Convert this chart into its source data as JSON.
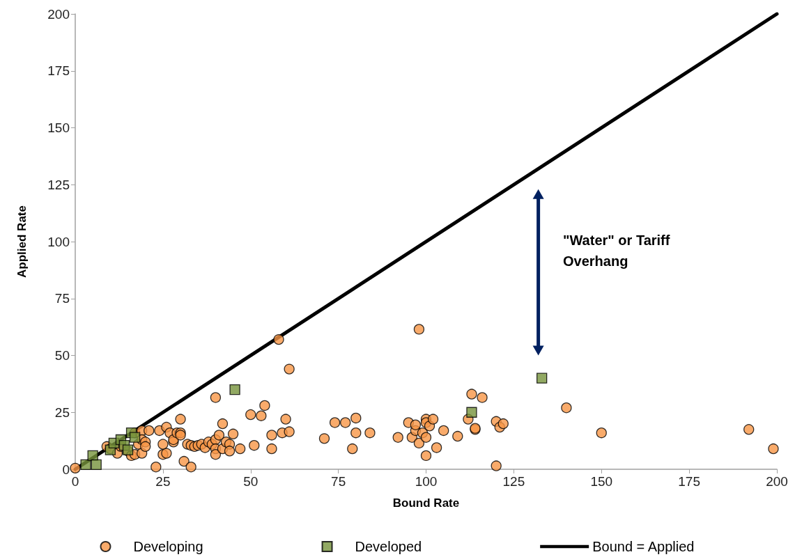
{
  "chart_data": {
    "type": "scatter",
    "xlabel": "Bound Rate",
    "ylabel": "Applied Rate",
    "xlim": [
      0,
      200
    ],
    "xticks": [
      0,
      25,
      50,
      75,
      100,
      125,
      150,
      175,
      200
    ],
    "ylim": [
      0,
      200
    ],
    "yticks": [
      0,
      25,
      50,
      75,
      100,
      125,
      150,
      175,
      200
    ],
    "grid": false,
    "legend": "bottom",
    "annotations": [
      "\"Water\" or Tariff Overhang"
    ],
    "series": [
      {
        "name": "Developing",
        "color": "#f79646",
        "marker": "circle",
        "x": [
          0,
          9,
          10,
          12,
          13,
          15,
          16,
          17,
          17,
          18,
          19,
          19,
          19,
          20,
          20,
          21,
          23,
          24,
          25,
          25,
          26,
          26,
          27,
          28,
          28,
          29,
          30,
          30,
          30,
          31,
          32,
          33,
          33,
          34,
          35,
          36,
          37,
          38,
          39,
          40,
          40,
          40,
          40,
          41,
          42,
          42,
          43,
          44,
          44,
          45,
          47,
          50,
          51,
          53,
          54,
          56,
          56,
          58,
          59,
          60,
          61,
          61,
          71,
          74,
          77,
          79,
          80,
          80,
          84,
          92,
          95,
          96,
          97,
          97,
          98,
          98,
          99,
          100,
          100,
          100,
          100,
          101,
          102,
          103,
          105,
          109,
          112,
          113,
          114,
          114,
          116,
          120,
          120,
          121,
          122,
          140,
          150,
          192,
          199
        ],
        "values": [
          0.5,
          10,
          9,
          7,
          10,
          8,
          6,
          6.5,
          16,
          11,
          7,
          17,
          13,
          12,
          10,
          17,
          1,
          17,
          11,
          6.5,
          7,
          18.5,
          16,
          12,
          13,
          16,
          22,
          16,
          15,
          3.5,
          11,
          10.5,
          1,
          10,
          10.5,
          11,
          9.5,
          12,
          11,
          31.5,
          13,
          9,
          6.5,
          15,
          9,
          20,
          12,
          11,
          8,
          15.5,
          9,
          24,
          10.5,
          23.5,
          28,
          15,
          9,
          57,
          16,
          22,
          44,
          16.5,
          13.5,
          20.5,
          20.5,
          9,
          22.5,
          16,
          16,
          14,
          20.5,
          14,
          17,
          19.5,
          11.5,
          61.5,
          16,
          22,
          20.5,
          14,
          6,
          19,
          22,
          9.5,
          17,
          14.5,
          22,
          33,
          17.5,
          18,
          31.5,
          21,
          1.5,
          18.5,
          20,
          27,
          16,
          17.5,
          9
        ]
      },
      {
        "name": "Developed",
        "color": "#77933c",
        "marker": "square",
        "x": [
          3,
          5,
          6,
          10,
          11,
          13,
          14,
          15,
          16,
          17,
          45.5,
          113,
          133
        ],
        "values": [
          2,
          6,
          2,
          8.5,
          11.5,
          13,
          10.5,
          8.5,
          16,
          14,
          35,
          25,
          40
        ]
      },
      {
        "name": "Bound = Applied",
        "type": "line",
        "color": "#000000",
        "marker": "none",
        "line_style": "solid",
        "x": [
          0,
          200
        ],
        "values": [
          0,
          200
        ]
      }
    ]
  }
}
